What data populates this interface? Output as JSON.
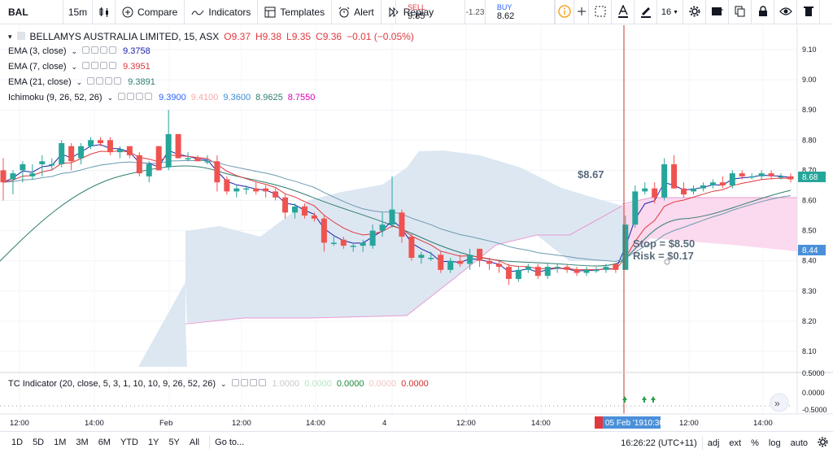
{
  "toolbar": {
    "symbol": "BAL",
    "interval": "15m",
    "compare_label": "Compare",
    "indicators_label": "Indicators",
    "templates_label": "Templates",
    "alert_label": "Alert",
    "replay_label": "Replay",
    "font_size": "16"
  },
  "trade": {
    "sell_label": "SELL",
    "sell_value": "9.85",
    "spread": "-1.23",
    "buy_label": "BUY",
    "buy_value": "8.62"
  },
  "legend": {
    "title": "BELLAMYS AUSTRALIA LIMITED, 15, ASX",
    "open": "O9.37",
    "high": "H9.38",
    "low": "L9.35",
    "close": "C9.36",
    "change": "−0.01 (−0.05%)",
    "ema3_name": "EMA (3, close)",
    "ema3_value": "9.3758",
    "ema7_name": "EMA (7, close)",
    "ema7_value": "9.3951",
    "ema21_name": "EMA (21, close)",
    "ema21_value": "9.3891",
    "ichimoku_name": "Ichimoku (9, 26, 52, 26)",
    "ichimoku_values": [
      "9.3900",
      "9.4100",
      "9.3600",
      "8.9625",
      "8.7550"
    ],
    "tc_name": "TC Indicator (20, close, 5, 3, 1, 10, 10, 9, 26, 52, 26)",
    "tc_values": [
      "1.0000",
      "0.0000",
      "0.0000",
      "0.0000",
      "0.0000"
    ]
  },
  "colors": {
    "up": "#26a69a",
    "down": "#ef5350",
    "ema3": "#1e22aa",
    "ema7": "#e0383f",
    "ema21": "#2e7d6f",
    "cloud_bull": "#dde7f2",
    "cloud_bear": "#fbd9ee",
    "crosshair": "#c0392b",
    "accent": "#4a90d9"
  },
  "annotations": {
    "price_label": "$8.67",
    "stop_label": "Stop = $8.50",
    "risk_label": "Risk = $0.17"
  },
  "price_axis": {
    "ticks": [
      "9.10",
      "9.00",
      "8.90",
      "8.80",
      "8.70",
      "8.60",
      "8.50",
      "8.40",
      "8.30",
      "8.20",
      "8.10"
    ],
    "current_price": "8.68",
    "marker_price": "8.44"
  },
  "tc_axis": {
    "ticks": [
      "0.5000",
      "0.0000",
      "-0.5000"
    ]
  },
  "time_axis": {
    "labels": [
      "12:00",
      "14:00",
      "Feb",
      "12:00",
      "14:00",
      "4",
      "12:00",
      "14:00",
      "12:00",
      "14:00"
    ],
    "crosshair_label": "05 Feb '19",
    "crosshair_time": "10:30"
  },
  "bottom": {
    "ranges": [
      "1D",
      "5D",
      "1M",
      "3M",
      "6M",
      "YTD",
      "1Y",
      "5Y",
      "All"
    ],
    "goto_label": "Go to...",
    "clock": "16:26:22 (UTC+11)",
    "options": [
      "adj",
      "ext",
      "%",
      "log",
      "auto"
    ]
  },
  "chart_data": {
    "type": "candlestick",
    "ylim": [
      8.0,
      9.15
    ],
    "candles": [
      [
        8.7,
        8.74,
        8.6,
        8.66
      ],
      [
        8.67,
        8.7,
        8.62,
        8.69
      ],
      [
        8.7,
        8.73,
        8.66,
        8.72
      ],
      [
        8.68,
        8.72,
        8.67,
        8.69
      ],
      [
        8.72,
        8.75,
        8.68,
        8.73
      ],
      [
        8.72,
        8.74,
        8.7,
        8.72
      ],
      [
        8.72,
        8.8,
        8.71,
        8.79
      ],
      [
        8.78,
        8.79,
        8.7,
        8.73
      ],
      [
        8.74,
        8.79,
        8.72,
        8.78
      ],
      [
        8.78,
        8.81,
        8.77,
        8.8
      ],
      [
        8.8,
        8.81,
        8.78,
        8.79
      ],
      [
        8.8,
        8.81,
        8.75,
        8.76
      ],
      [
        8.76,
        8.78,
        8.74,
        8.77
      ],
      [
        8.78,
        8.78,
        8.74,
        8.75
      ],
      [
        8.75,
        8.76,
        8.68,
        8.69
      ],
      [
        8.68,
        8.73,
        8.66,
        8.72
      ],
      [
        8.78,
        8.78,
        8.7,
        8.7
      ],
      [
        8.71,
        8.9,
        8.7,
        8.82
      ],
      [
        8.82,
        8.82,
        8.74,
        8.74
      ],
      [
        8.74,
        8.76,
        8.73,
        8.74
      ],
      [
        8.74,
        8.75,
        8.73,
        8.73
      ],
      [
        8.73,
        8.75,
        8.72,
        8.73
      ],
      [
        8.73,
        8.75,
        8.63,
        8.66
      ],
      [
        8.67,
        8.68,
        8.62,
        8.63
      ],
      [
        8.63,
        8.65,
        8.61,
        8.64
      ],
      [
        8.64,
        8.65,
        8.62,
        8.64
      ],
      [
        8.64,
        8.66,
        8.62,
        8.63
      ],
      [
        8.64,
        8.65,
        8.61,
        8.63
      ],
      [
        8.63,
        8.64,
        8.6,
        8.61
      ],
      [
        8.61,
        8.62,
        8.54,
        8.56
      ],
      [
        8.56,
        8.59,
        8.54,
        8.58
      ],
      [
        8.58,
        8.59,
        8.54,
        8.55
      ],
      [
        8.55,
        8.56,
        8.53,
        8.54
      ],
      [
        8.54,
        8.55,
        8.43,
        8.46
      ],
      [
        8.46,
        8.48,
        8.45,
        8.46
      ],
      [
        8.47,
        8.48,
        8.44,
        8.45
      ],
      [
        8.45,
        8.46,
        8.43,
        8.45
      ],
      [
        8.45,
        8.47,
        8.43,
        8.46
      ],
      [
        8.45,
        8.52,
        8.44,
        8.5
      ],
      [
        8.5,
        8.56,
        8.48,
        8.52
      ],
      [
        8.52,
        8.68,
        8.51,
        8.57
      ],
      [
        8.56,
        8.57,
        8.46,
        8.48
      ],
      [
        8.48,
        8.49,
        8.4,
        8.41
      ],
      [
        8.41,
        8.43,
        8.39,
        8.42
      ],
      [
        8.41,
        8.43,
        8.4,
        8.41
      ],
      [
        8.42,
        8.43,
        8.36,
        8.37
      ],
      [
        8.37,
        8.41,
        8.36,
        8.4
      ],
      [
        8.4,
        8.42,
        8.38,
        8.39
      ],
      [
        8.39,
        8.44,
        8.37,
        8.42
      ],
      [
        8.44,
        8.44,
        8.38,
        8.4
      ],
      [
        8.4,
        8.41,
        8.37,
        8.39
      ],
      [
        8.39,
        8.4,
        8.36,
        8.38
      ],
      [
        8.38,
        8.39,
        8.32,
        8.34
      ],
      [
        8.34,
        8.38,
        8.33,
        8.37
      ],
      [
        8.37,
        8.39,
        8.36,
        8.38
      ],
      [
        8.38,
        8.39,
        8.34,
        8.35
      ],
      [
        8.35,
        8.39,
        8.34,
        8.38
      ],
      [
        8.38,
        8.39,
        8.36,
        8.38
      ],
      [
        8.38,
        8.39,
        8.36,
        8.37
      ],
      [
        8.37,
        8.38,
        8.35,
        8.36
      ],
      [
        8.36,
        8.38,
        8.35,
        8.37
      ],
      [
        8.37,
        8.38,
        8.36,
        8.37
      ],
      [
        8.37,
        8.39,
        8.36,
        8.38
      ],
      [
        8.39,
        8.39,
        8.36,
        8.37
      ],
      [
        8.37,
        8.55,
        8.37,
        8.52
      ],
      [
        8.52,
        8.65,
        8.51,
        8.63
      ],
      [
        8.63,
        8.66,
        8.62,
        8.64
      ],
      [
        8.64,
        8.66,
        8.59,
        8.61
      ],
      [
        8.61,
        8.74,
        8.6,
        8.72
      ],
      [
        8.72,
        8.75,
        8.64,
        8.64
      ],
      [
        8.64,
        8.66,
        8.61,
        8.62
      ],
      [
        8.63,
        8.65,
        8.62,
        8.64
      ],
      [
        8.64,
        8.66,
        8.63,
        8.65
      ],
      [
        8.65,
        8.67,
        8.64,
        8.66
      ],
      [
        8.66,
        8.68,
        8.64,
        8.65
      ],
      [
        8.65,
        8.7,
        8.64,
        8.69
      ],
      [
        8.69,
        8.7,
        8.67,
        8.68
      ],
      [
        8.68,
        8.69,
        8.67,
        8.68
      ],
      [
        8.68,
        8.7,
        8.67,
        8.69
      ],
      [
        8.69,
        8.7,
        8.67,
        8.68
      ],
      [
        8.68,
        8.69,
        8.67,
        8.68
      ],
      [
        8.68,
        8.69,
        8.66,
        8.67
      ]
    ]
  }
}
